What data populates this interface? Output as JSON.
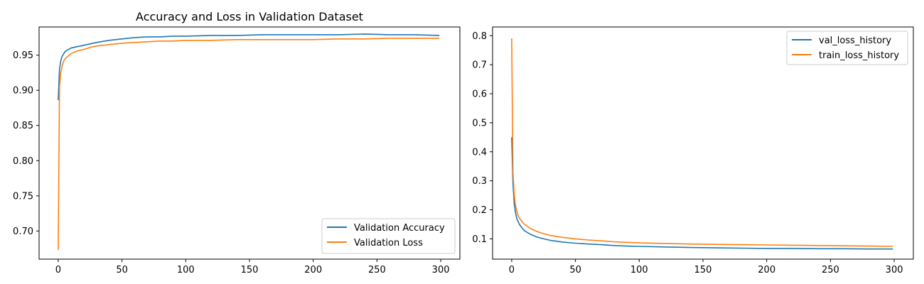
{
  "chart_data": [
    {
      "type": "line",
      "title": "Accuracy and Loss in Validation Dataset",
      "xlabel": "",
      "ylabel": "",
      "xlim": [
        -15,
        315
      ],
      "ylim": [
        0.66,
        0.99
      ],
      "x_ticks": [
        0,
        50,
        100,
        150,
        200,
        250,
        300
      ],
      "y_ticks": [
        0.7,
        0.75,
        0.8,
        0.85,
        0.9,
        0.95
      ],
      "x_tick_labels": [
        "0",
        "50",
        "100",
        "150",
        "200",
        "250",
        "300"
      ],
      "y_tick_labels": [
        "0.70",
        "0.75",
        "0.80",
        "0.85",
        "0.90",
        "0.95"
      ],
      "grid": false,
      "legend_position": "bottom-right",
      "series": [
        {
          "name": "Validation Accuracy",
          "color": "#1f77b4",
          "x": [
            0,
            1,
            2,
            3,
            4,
            5,
            6,
            8,
            10,
            15,
            20,
            25,
            30,
            40,
            50,
            60,
            70,
            80,
            90,
            100,
            120,
            140,
            160,
            180,
            200,
            220,
            240,
            260,
            280,
            299
          ],
          "y": [
            0.886,
            0.93,
            0.942,
            0.948,
            0.951,
            0.954,
            0.956,
            0.958,
            0.96,
            0.962,
            0.964,
            0.966,
            0.968,
            0.971,
            0.973,
            0.975,
            0.976,
            0.976,
            0.977,
            0.977,
            0.978,
            0.978,
            0.979,
            0.979,
            0.979,
            0.979,
            0.98,
            0.979,
            0.979,
            0.978
          ]
        },
        {
          "name": "Validation Loss",
          "color": "#ff7f0e",
          "x": [
            0,
            1,
            2,
            3,
            4,
            5,
            6,
            8,
            10,
            15,
            20,
            25,
            30,
            40,
            50,
            60,
            70,
            80,
            90,
            100,
            120,
            140,
            160,
            180,
            200,
            220,
            240,
            260,
            280,
            299
          ],
          "y": [
            0.673,
            0.905,
            0.925,
            0.934,
            0.94,
            0.944,
            0.946,
            0.949,
            0.952,
            0.956,
            0.958,
            0.961,
            0.963,
            0.965,
            0.967,
            0.968,
            0.969,
            0.97,
            0.97,
            0.971,
            0.971,
            0.972,
            0.972,
            0.972,
            0.972,
            0.973,
            0.973,
            0.974,
            0.974,
            0.974
          ]
        }
      ]
    },
    {
      "type": "line",
      "title": "",
      "xlabel": "",
      "ylabel": "",
      "xlim": [
        -15,
        315
      ],
      "ylim": [
        0.03,
        0.83
      ],
      "x_ticks": [
        0,
        50,
        100,
        150,
        200,
        250,
        300
      ],
      "y_ticks": [
        0.1,
        0.2,
        0.3,
        0.4,
        0.5,
        0.6,
        0.7,
        0.8
      ],
      "x_tick_labels": [
        "0",
        "50",
        "100",
        "150",
        "200",
        "250",
        "300"
      ],
      "y_tick_labels": [
        "0.1",
        "0.2",
        "0.3",
        "0.4",
        "0.5",
        "0.6",
        "0.7",
        "0.8"
      ],
      "grid": false,
      "legend_position": "top-right",
      "series": [
        {
          "name": "val_loss_history",
          "color": "#1f77b4",
          "x": [
            0,
            1,
            2,
            3,
            4,
            5,
            6,
            8,
            10,
            15,
            20,
            25,
            30,
            40,
            50,
            60,
            70,
            80,
            90,
            100,
            120,
            140,
            160,
            180,
            200,
            220,
            240,
            260,
            280,
            299
          ],
          "y": [
            0.45,
            0.29,
            0.22,
            0.19,
            0.17,
            0.16,
            0.15,
            0.138,
            0.128,
            0.115,
            0.106,
            0.1,
            0.095,
            0.089,
            0.085,
            0.082,
            0.08,
            0.077,
            0.075,
            0.074,
            0.072,
            0.07,
            0.069,
            0.068,
            0.067,
            0.067,
            0.066,
            0.066,
            0.065,
            0.065
          ]
        },
        {
          "name": "train_loss_history",
          "color": "#ff7f0e",
          "x": [
            0,
            1,
            2,
            3,
            4,
            5,
            6,
            8,
            10,
            15,
            20,
            25,
            30,
            40,
            50,
            60,
            70,
            80,
            90,
            100,
            120,
            140,
            160,
            180,
            200,
            220,
            240,
            260,
            280,
            299
          ],
          "y": [
            0.79,
            0.33,
            0.25,
            0.215,
            0.195,
            0.18,
            0.172,
            0.16,
            0.15,
            0.135,
            0.125,
            0.118,
            0.112,
            0.105,
            0.1,
            0.096,
            0.093,
            0.09,
            0.088,
            0.086,
            0.084,
            0.082,
            0.081,
            0.08,
            0.079,
            0.078,
            0.077,
            0.076,
            0.075,
            0.074
          ]
        }
      ]
    }
  ]
}
